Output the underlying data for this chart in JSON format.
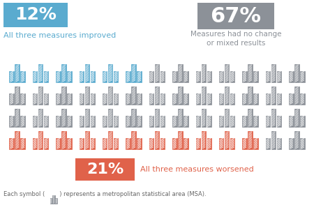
{
  "blue_count": 6,
  "gray_count": 35,
  "red_count": 11,
  "total": 52,
  "blue_pct": "12%",
  "gray_pct": "67%",
  "red_pct": "21%",
  "blue_label": "All three measures improved",
  "gray_label": "Measures had no change\nor mixed results",
  "red_label": "All three measures worsened",
  "footnote": "Each symbol (        ) represents a metropolitan statistical area (MSA).",
  "blue_color": "#5aabcf",
  "gray_color": "#8c9198",
  "red_color": "#e0624a",
  "bg_color": "#ffffff",
  "cols": 13,
  "rows_layout": [
    [
      "blue",
      "blue",
      "blue",
      "blue",
      "blue",
      "blue",
      "gray",
      "gray",
      "gray",
      "gray",
      "gray",
      "gray",
      "gray"
    ],
    [
      "gray",
      "gray",
      "gray",
      "gray",
      "gray",
      "gray",
      "gray",
      "gray",
      "gray",
      "gray",
      "gray",
      "gray",
      "gray"
    ],
    [
      "gray",
      "gray",
      "gray",
      "gray",
      "gray",
      "gray",
      "gray",
      "gray",
      "gray",
      "gray",
      "gray",
      "gray",
      "gray"
    ],
    [
      "red",
      "red",
      "red",
      "red",
      "red",
      "red",
      "red",
      "red",
      "red",
      "red",
      "red",
      "gray",
      "gray"
    ]
  ]
}
